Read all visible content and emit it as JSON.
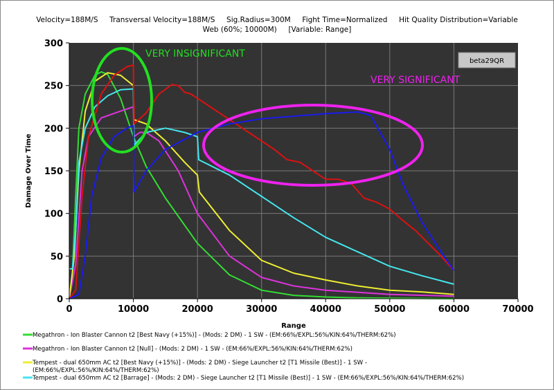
{
  "chart_data": {
    "type": "line",
    "subtitle_line1": "Velocity=188M/S     Transversal Velocity=188M/S     Sig.Radius=300M     Fight Time=Normalized     Hit Quality Distribution=Variable",
    "subtitle_line2": "Web (60%; 10000M)     [Variable: Range]",
    "xlabel": "Range",
    "ylabel": "Damage Over Time",
    "xlim": [
      0,
      70000
    ],
    "ylim": [
      0,
      300
    ],
    "xticks": [
      0,
      10000,
      20000,
      30000,
      40000,
      50000,
      60000,
      70000
    ],
    "yticks": [
      0,
      50,
      100,
      150,
      200,
      250,
      300
    ],
    "grid": true,
    "watermark": "beta29QR",
    "annotations": [
      {
        "text": "VERY INSIGNIFICANT",
        "color": "#22e022"
      },
      {
        "text": "VERY SIGNIFICANT",
        "color": "#ee22ee"
      }
    ],
    "legend_placement": "bottom",
    "series": [
      {
        "name": "Megathron - Ion Blaster Cannon t2 [Best Navy (+15%)] - (Mods: 2 DM) - 1 SW - (EM:66%/EXPL:56%/KIN:64%/THERM:62%)",
        "color": "#33dd33",
        "x": [
          0,
          500,
          1000,
          1500,
          2500,
          4000,
          5000,
          6000,
          8000,
          10000,
          12000,
          15000,
          20000,
          25000,
          30000,
          35000,
          40000,
          45000,
          60000
        ],
        "y": [
          0,
          30,
          120,
          200,
          240,
          262,
          266,
          263,
          235,
          190,
          155,
          118,
          65,
          28,
          10,
          4,
          2,
          1,
          0
        ]
      },
      {
        "name": "Megathron - Ion Blaster Cannon t2 [Null] - (Mods: 2 DM) - 1 SW - (EM:66%/EXPL:56%/KIN:64%/THERM:62%)",
        "color": "#dd33dd",
        "x": [
          0,
          1000,
          2000,
          3000,
          5000,
          8000,
          10000,
          10100,
          11000,
          12000,
          14000,
          17000,
          20000,
          25000,
          30000,
          35000,
          40000,
          50000,
          60000
        ],
        "y": [
          0,
          40,
          150,
          190,
          212,
          220,
          225,
          190,
          195,
          195,
          185,
          150,
          100,
          50,
          25,
          15,
          10,
          5,
          3
        ]
      },
      {
        "name": "Tempest - dual 650mm AC t2 [Best Navy (+15%)] - (Mods: 2 DM) - Siege Launcher t2 [T1 Missile (Best)] - 1 SW -",
        "name_line2": "(EM:66%/EXPL:56%/KIN:64%/THERM:62%)",
        "color": "#eeee33",
        "x": [
          0,
          800,
          1500,
          2500,
          4000,
          6000,
          8000,
          10000,
          10100,
          12000,
          15000,
          18000,
          20000,
          20300,
          25000,
          30000,
          35000,
          40000,
          45000,
          50000,
          55000,
          60000
        ],
        "y": [
          0,
          50,
          150,
          220,
          255,
          265,
          262,
          250,
          210,
          205,
          185,
          160,
          145,
          125,
          80,
          45,
          30,
          22,
          15,
          10,
          8,
          5
        ]
      },
      {
        "name": "Tempest - dual 650mm AC t2 [Barrage] - (Mods: 2 DM) - Siege Launcher t2 [T1 Missile (Best)] - 1 SW - (EM:66%/EXPL:56%/KIN:64%/THERM:62%)",
        "color": "#44e6ee",
        "x": [
          0,
          500,
          1000,
          1500,
          2500,
          4000,
          6000,
          8000,
          10000,
          10100,
          12000,
          15000,
          18000,
          20000,
          20200,
          25000,
          30000,
          35000,
          40000,
          45000,
          50000,
          55000,
          60000
        ],
        "y": [
          35,
          35,
          80,
          160,
          200,
          225,
          238,
          245,
          246,
          180,
          195,
          200,
          195,
          190,
          163,
          145,
          120,
          95,
          72,
          55,
          38,
          27,
          17
        ]
      },
      {
        "name": "",
        "color": "#dd1111",
        "x": [
          0,
          1000,
          2000,
          3000,
          5000,
          7000,
          9000,
          10000,
          10100,
          12000,
          14000,
          16000,
          17000,
          18000,
          19000,
          20000,
          22000,
          24000,
          26000,
          28000,
          30000,
          32000,
          34000,
          36000,
          38000,
          40000,
          42000,
          44000,
          46000,
          48000,
          50000,
          52000,
          54000,
          56000,
          58000,
          60000
        ],
        "y": [
          0,
          10,
          120,
          190,
          240,
          262,
          272,
          274,
          205,
          218,
          240,
          251,
          250,
          242,
          240,
          235,
          225,
          215,
          205,
          195,
          185,
          175,
          163,
          160,
          150,
          140,
          140,
          135,
          118,
          113,
          105,
          92,
          80,
          65,
          50,
          33
        ]
      },
      {
        "name": "",
        "color": "#1a1aee",
        "x": [
          0,
          1500,
          2500,
          3500,
          5000,
          7000,
          9000,
          10000,
          10100,
          12000,
          15000,
          20000,
          25000,
          30000,
          40000,
          45000,
          47000,
          50000,
          52000,
          55000,
          58000,
          60000
        ],
        "y": [
          0,
          5,
          50,
          120,
          165,
          190,
          200,
          203,
          125,
          150,
          175,
          195,
          205,
          211,
          217,
          219,
          215,
          175,
          135,
          90,
          55,
          33
        ]
      }
    ]
  }
}
